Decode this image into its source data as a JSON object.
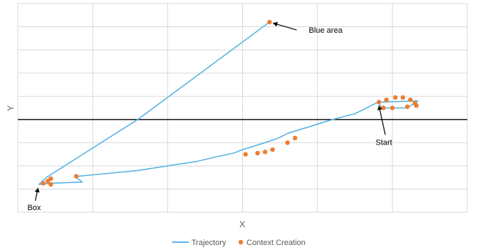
{
  "chart_data": {
    "type": "scatter",
    "title": "",
    "xlabel": "X",
    "ylabel": "Y",
    "xlim": [
      0,
      30
    ],
    "ylim": [
      -4,
      5
    ],
    "x_grid_lines": [
      0,
      5,
      10,
      15,
      20,
      25,
      30
    ],
    "y_grid_lines": [
      -4,
      -3,
      -2,
      -1,
      0,
      1,
      2,
      3,
      4,
      5
    ],
    "grid": true,
    "tick_labels_shown": false,
    "legend_position": "bottom",
    "series": [
      {
        "name": "Trajectory",
        "kind": "line",
        "color": "#5BB4E5",
        "points": [
          [
            24.05,
            0.75
          ],
          [
            26.7,
            0.8
          ],
          [
            26.0,
            0.5
          ],
          [
            24.3,
            0.5
          ],
          [
            24.05,
            0.75
          ],
          [
            22.5,
            0.25
          ],
          [
            21.0,
            0.0
          ],
          [
            18.0,
            -0.6
          ],
          [
            17.4,
            -0.8
          ],
          [
            16.5,
            -1.0
          ],
          [
            15.0,
            -1.3
          ],
          [
            14.4,
            -1.45
          ],
          [
            13.3,
            -1.6
          ],
          [
            12.0,
            -1.8
          ],
          [
            8.0,
            -2.2
          ],
          [
            4.0,
            -2.45
          ],
          [
            3.9,
            -2.5
          ],
          [
            4.3,
            -2.7
          ],
          [
            2.2,
            -2.75
          ],
          [
            1.4,
            -2.8
          ],
          [
            1.9,
            -2.5
          ],
          [
            8.0,
            0.0
          ],
          [
            16.8,
            4.2
          ]
        ]
      },
      {
        "name": "Context Creation",
        "kind": "scatter",
        "color": "#ED7D31",
        "points": [
          [
            16.8,
            4.2
          ],
          [
            18.5,
            -0.8
          ],
          [
            18.0,
            -1.0
          ],
          [
            17.0,
            -1.3
          ],
          [
            16.5,
            -1.4
          ],
          [
            16.0,
            -1.45
          ],
          [
            15.2,
            -1.5
          ],
          [
            3.9,
            -2.45
          ],
          [
            2.2,
            -2.55
          ],
          [
            2.0,
            -2.65
          ],
          [
            1.7,
            -2.75
          ],
          [
            2.2,
            -2.8
          ],
          [
            24.1,
            0.75
          ],
          [
            24.6,
            0.85
          ],
          [
            25.2,
            0.95
          ],
          [
            25.7,
            0.95
          ],
          [
            26.2,
            0.85
          ],
          [
            26.5,
            0.7
          ],
          [
            26.6,
            0.6
          ],
          [
            26.0,
            0.55
          ],
          [
            25.0,
            0.5
          ],
          [
            24.4,
            0.5
          ]
        ]
      }
    ],
    "annotations": [
      {
        "text": "Blue area",
        "point": [
          16.8,
          4.2
        ]
      },
      {
        "text": "Start",
        "point": [
          24.05,
          0.75
        ]
      },
      {
        "text": "Box",
        "point": [
          1.4,
          -2.8
        ]
      }
    ],
    "legend": [
      "Trajectory",
      "Context Creation"
    ]
  }
}
